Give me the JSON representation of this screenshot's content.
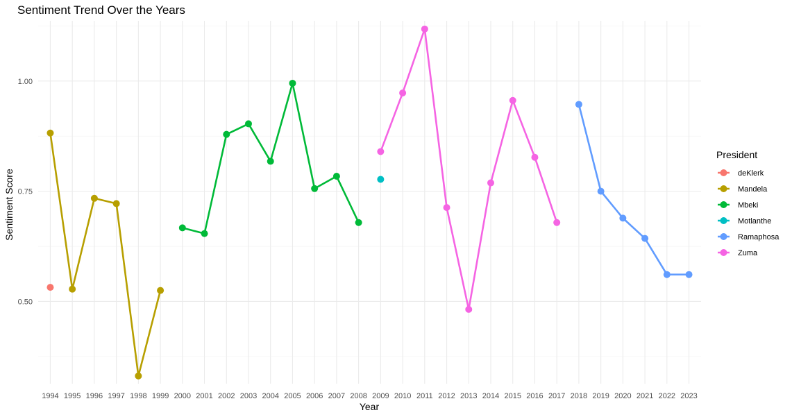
{
  "chart_data": {
    "type": "line",
    "title": "Sentiment Trend Over the Years",
    "xlabel": "Year",
    "ylabel": "Sentiment Score",
    "xlim": [
      1994,
      2023
    ],
    "ylim": [
      0.33,
      1.12
    ],
    "y_ticks": [
      "0.50",
      "0.75",
      "1.00"
    ],
    "x_ticks": [
      "1994",
      "1995",
      "1996",
      "1997",
      "1998",
      "1999",
      "2000",
      "2001",
      "2002",
      "2003",
      "2004",
      "2005",
      "2006",
      "2007",
      "2008",
      "2009",
      "2010",
      "2011",
      "2012",
      "2013",
      "2014",
      "2015",
      "2016",
      "2017",
      "2018",
      "2019",
      "2020",
      "2021",
      "2022",
      "2023"
    ],
    "grid": true,
    "legend": {
      "title": "President",
      "position": "right"
    },
    "series": [
      {
        "name": "deKlerk",
        "color": "#F8766D",
        "points": [
          [
            1994,
            0.532
          ]
        ]
      },
      {
        "name": "Mandela",
        "color": "#B79F00",
        "points": [
          [
            1994,
            0.882
          ],
          [
            1995,
            0.528
          ],
          [
            1996,
            0.734
          ],
          [
            1997,
            0.722
          ],
          [
            1998,
            0.331
          ],
          [
            1999,
            0.525
          ]
        ]
      },
      {
        "name": "Mbeki",
        "color": "#00BA38",
        "points": [
          [
            2000,
            0.667
          ],
          [
            2001,
            0.654
          ],
          [
            2002,
            0.879
          ],
          [
            2003,
            0.903
          ],
          [
            2004,
            0.818
          ],
          [
            2005,
            0.995
          ],
          [
            2006,
            0.756
          ],
          [
            2007,
            0.784
          ],
          [
            2008,
            0.679
          ]
        ]
      },
      {
        "name": "Motlanthe",
        "color": "#00BFC4",
        "points": [
          [
            2009,
            0.777
          ]
        ]
      },
      {
        "name": "Ramaphosa",
        "color": "#619CFF",
        "points": [
          [
            2018,
            0.947
          ],
          [
            2019,
            0.75
          ],
          [
            2020,
            0.689
          ],
          [
            2021,
            0.643
          ],
          [
            2022,
            0.561
          ],
          [
            2023,
            0.561
          ]
        ]
      },
      {
        "name": "Zuma",
        "color": "#F564E3",
        "points": [
          [
            2009,
            0.84
          ],
          [
            2010,
            0.973
          ],
          [
            2011,
            1.118
          ],
          [
            2012,
            0.713
          ],
          [
            2013,
            0.482
          ],
          [
            2014,
            0.769
          ],
          [
            2015,
            0.956
          ],
          [
            2016,
            0.827
          ],
          [
            2017,
            0.679
          ]
        ]
      }
    ]
  }
}
